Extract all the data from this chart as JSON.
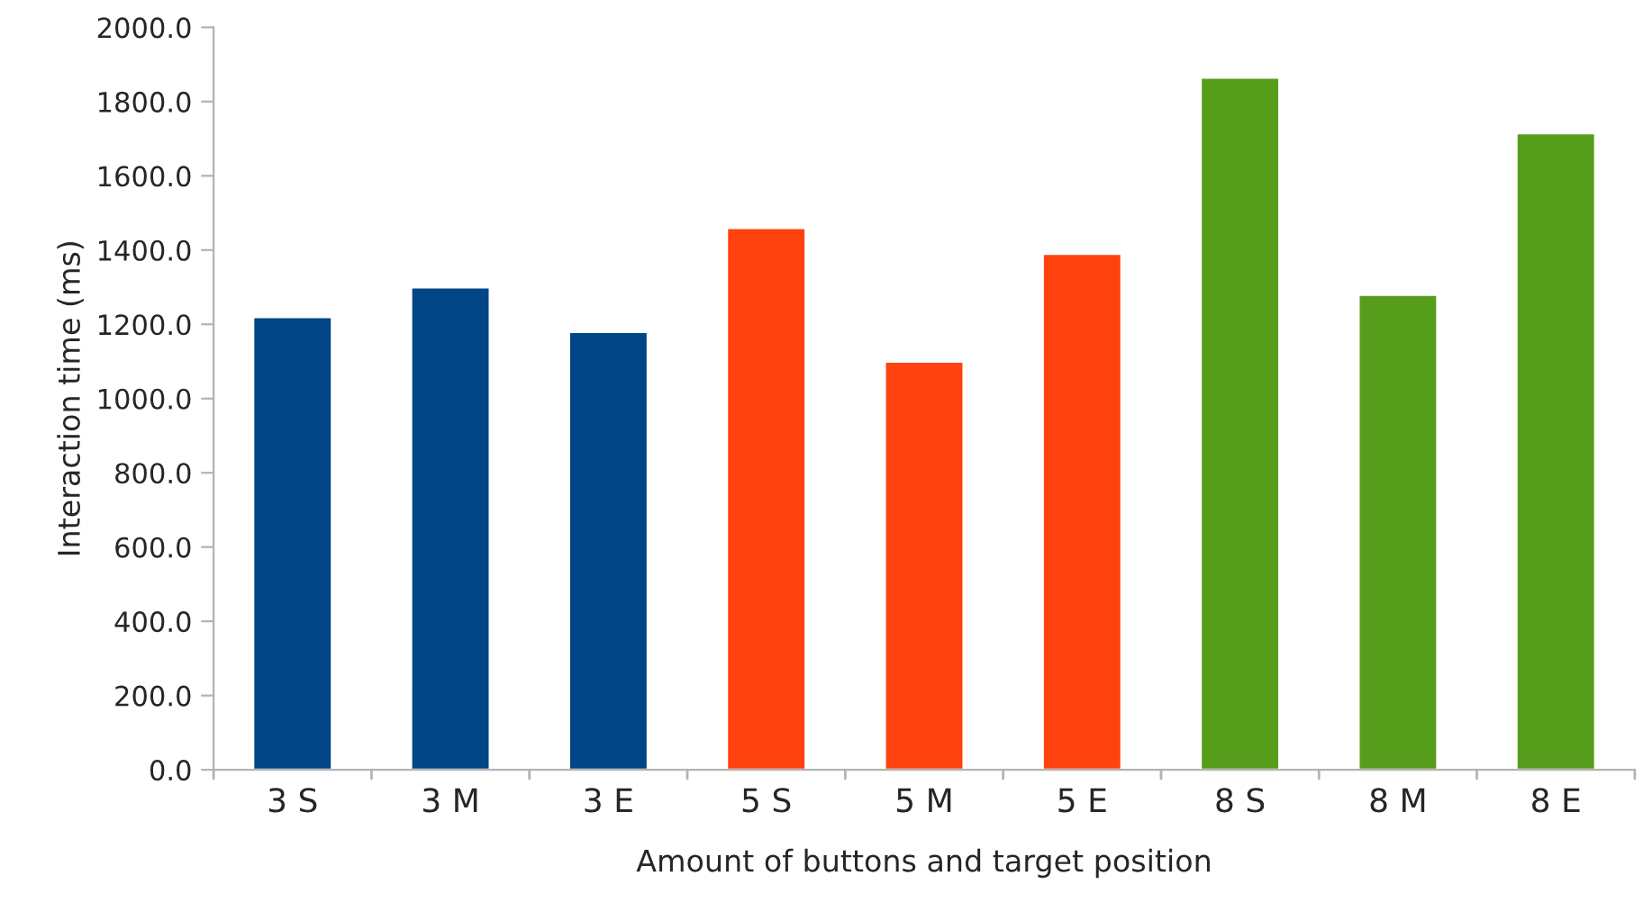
{
  "chart_data": {
    "type": "bar",
    "xlabel": "Amount of buttons and target position",
    "ylabel": "Interaction time (ms)",
    "categories": [
      "3 S",
      "3 M",
      "3 E",
      "5 S",
      "5 M",
      "5 E",
      "8 S",
      "8 M",
      "8 E"
    ],
    "values": [
      1220,
      1300,
      1180,
      1460,
      1100,
      1390,
      1865,
      1280,
      1715
    ],
    "colors": [
      "#004586",
      "#004586",
      "#004586",
      "#ff420e",
      "#ff420e",
      "#ff420e",
      "#579d1c",
      "#579d1c",
      "#579d1c"
    ],
    "ylim": [
      0,
      2000
    ],
    "yticks": [
      {
        "value": 0,
        "label": "0.0"
      },
      {
        "value": 200,
        "label": "200.0"
      },
      {
        "value": 400,
        "label": "400.0"
      },
      {
        "value": 600,
        "label": "600.0"
      },
      {
        "value": 800,
        "label": "800.0"
      },
      {
        "value": 1000,
        "label": "1000.0"
      },
      {
        "value": 1200,
        "label": "1200.0"
      },
      {
        "value": 1400,
        "label": "1400.0"
      },
      {
        "value": 1600,
        "label": "1600.0"
      },
      {
        "value": 1800,
        "label": "1800.0"
      },
      {
        "value": 2000,
        "label": "2000.0"
      }
    ],
    "grid": false
  }
}
